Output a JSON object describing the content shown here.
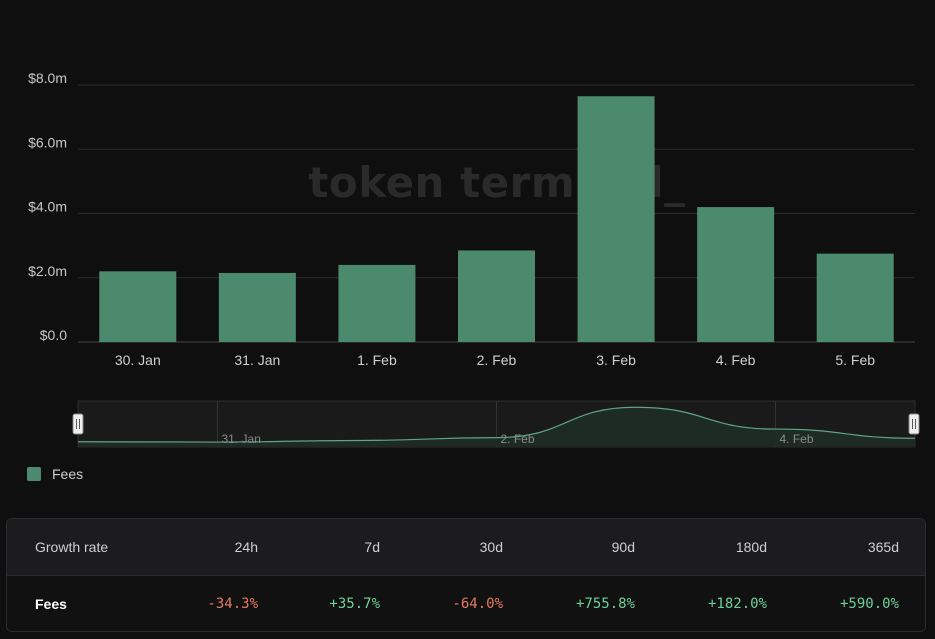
{
  "chart_data": {
    "type": "bar",
    "categories": [
      "30. Jan",
      "31. Jan",
      "1. Feb",
      "2. Feb",
      "3. Feb",
      "4. Feb",
      "5. Feb"
    ],
    "series": [
      {
        "name": "Fees",
        "values": [
          2.2,
          2.15,
          2.4,
          2.85,
          7.65,
          4.2,
          2.75
        ]
      }
    ],
    "unit": "$m",
    "ylim": [
      0,
      8
    ],
    "yticks": [
      "$0.0",
      "$2.0m",
      "$4.0m",
      "$6.0m",
      "$8.0m"
    ],
    "grid": true,
    "legend_position": "bottom-left",
    "watermark": "token terminal_",
    "navigator": {
      "labels": [
        "31. Jan",
        "2. Feb",
        "4. Feb"
      ]
    }
  },
  "colors": {
    "bar": "#4c8a6d",
    "background": "#0f0f0f",
    "positive": "#6ed197",
    "negative": "#e8795f"
  },
  "growth": {
    "header_label": "Growth rate",
    "periods": [
      "24h",
      "7d",
      "30d",
      "90d",
      "180d",
      "365d"
    ],
    "row_label": "Fees",
    "values": [
      "-34.3%",
      "+35.7%",
      "-64.0%",
      "+755.8%",
      "+182.0%",
      "+590.0%"
    ]
  }
}
